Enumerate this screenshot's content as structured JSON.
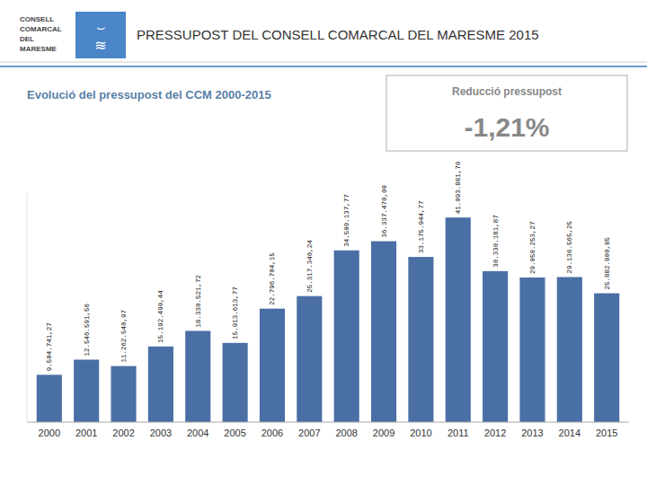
{
  "chart_data": {
    "type": "bar",
    "title": "PRESSUPOST DEL CONSELL COMARCAL DEL MARESME 2015",
    "subtitle": "Evolució del pressupost del CCM 2000-2015",
    "annotations": [
      "CONSELL",
      "COMARCAL",
      "DEL",
      "MARESME",
      "⌣",
      "≋",
      "Reducció pressupost",
      "-1,21%"
    ],
    "categories": [
      "2000",
      "2001",
      "2002",
      "2003",
      "2004",
      "2005",
      "2006",
      "2007",
      "2008",
      "2009",
      "2010",
      "2011",
      "2012",
      "2013",
      "2014",
      "2015"
    ],
    "values": [
      9504741.27,
      12546591.56,
      11262540.97,
      15192490.44,
      18330521.72,
      15913613.77,
      22796704.15,
      25317340.24,
      34500137.77,
      36337470.0,
      33175944.77,
      41093881.7,
      30330181.87,
      29050253.27,
      29136565.25,
      25882800.85
    ],
    "value_labels": [
      "9.504.741,27",
      "12.546.591,56",
      "11.262.540,97",
      "15.192.490,44",
      "18.330.521,72",
      "15.913.613,77",
      "22.796.704,15",
      "25.317.340,24",
      "34.500.137,77",
      "36.337.470,00",
      "33.175.944,77",
      "41.093.881,70",
      "30.330.181,87",
      "29.050.253,27",
      "29.136.565,25",
      "25.882.800,85"
    ],
    "data_labels": true,
    "color": "#4a6fa5",
    "ylim": [
      0,
      46000000
    ],
    "tick_labels": "x",
    "grid": false
  }
}
